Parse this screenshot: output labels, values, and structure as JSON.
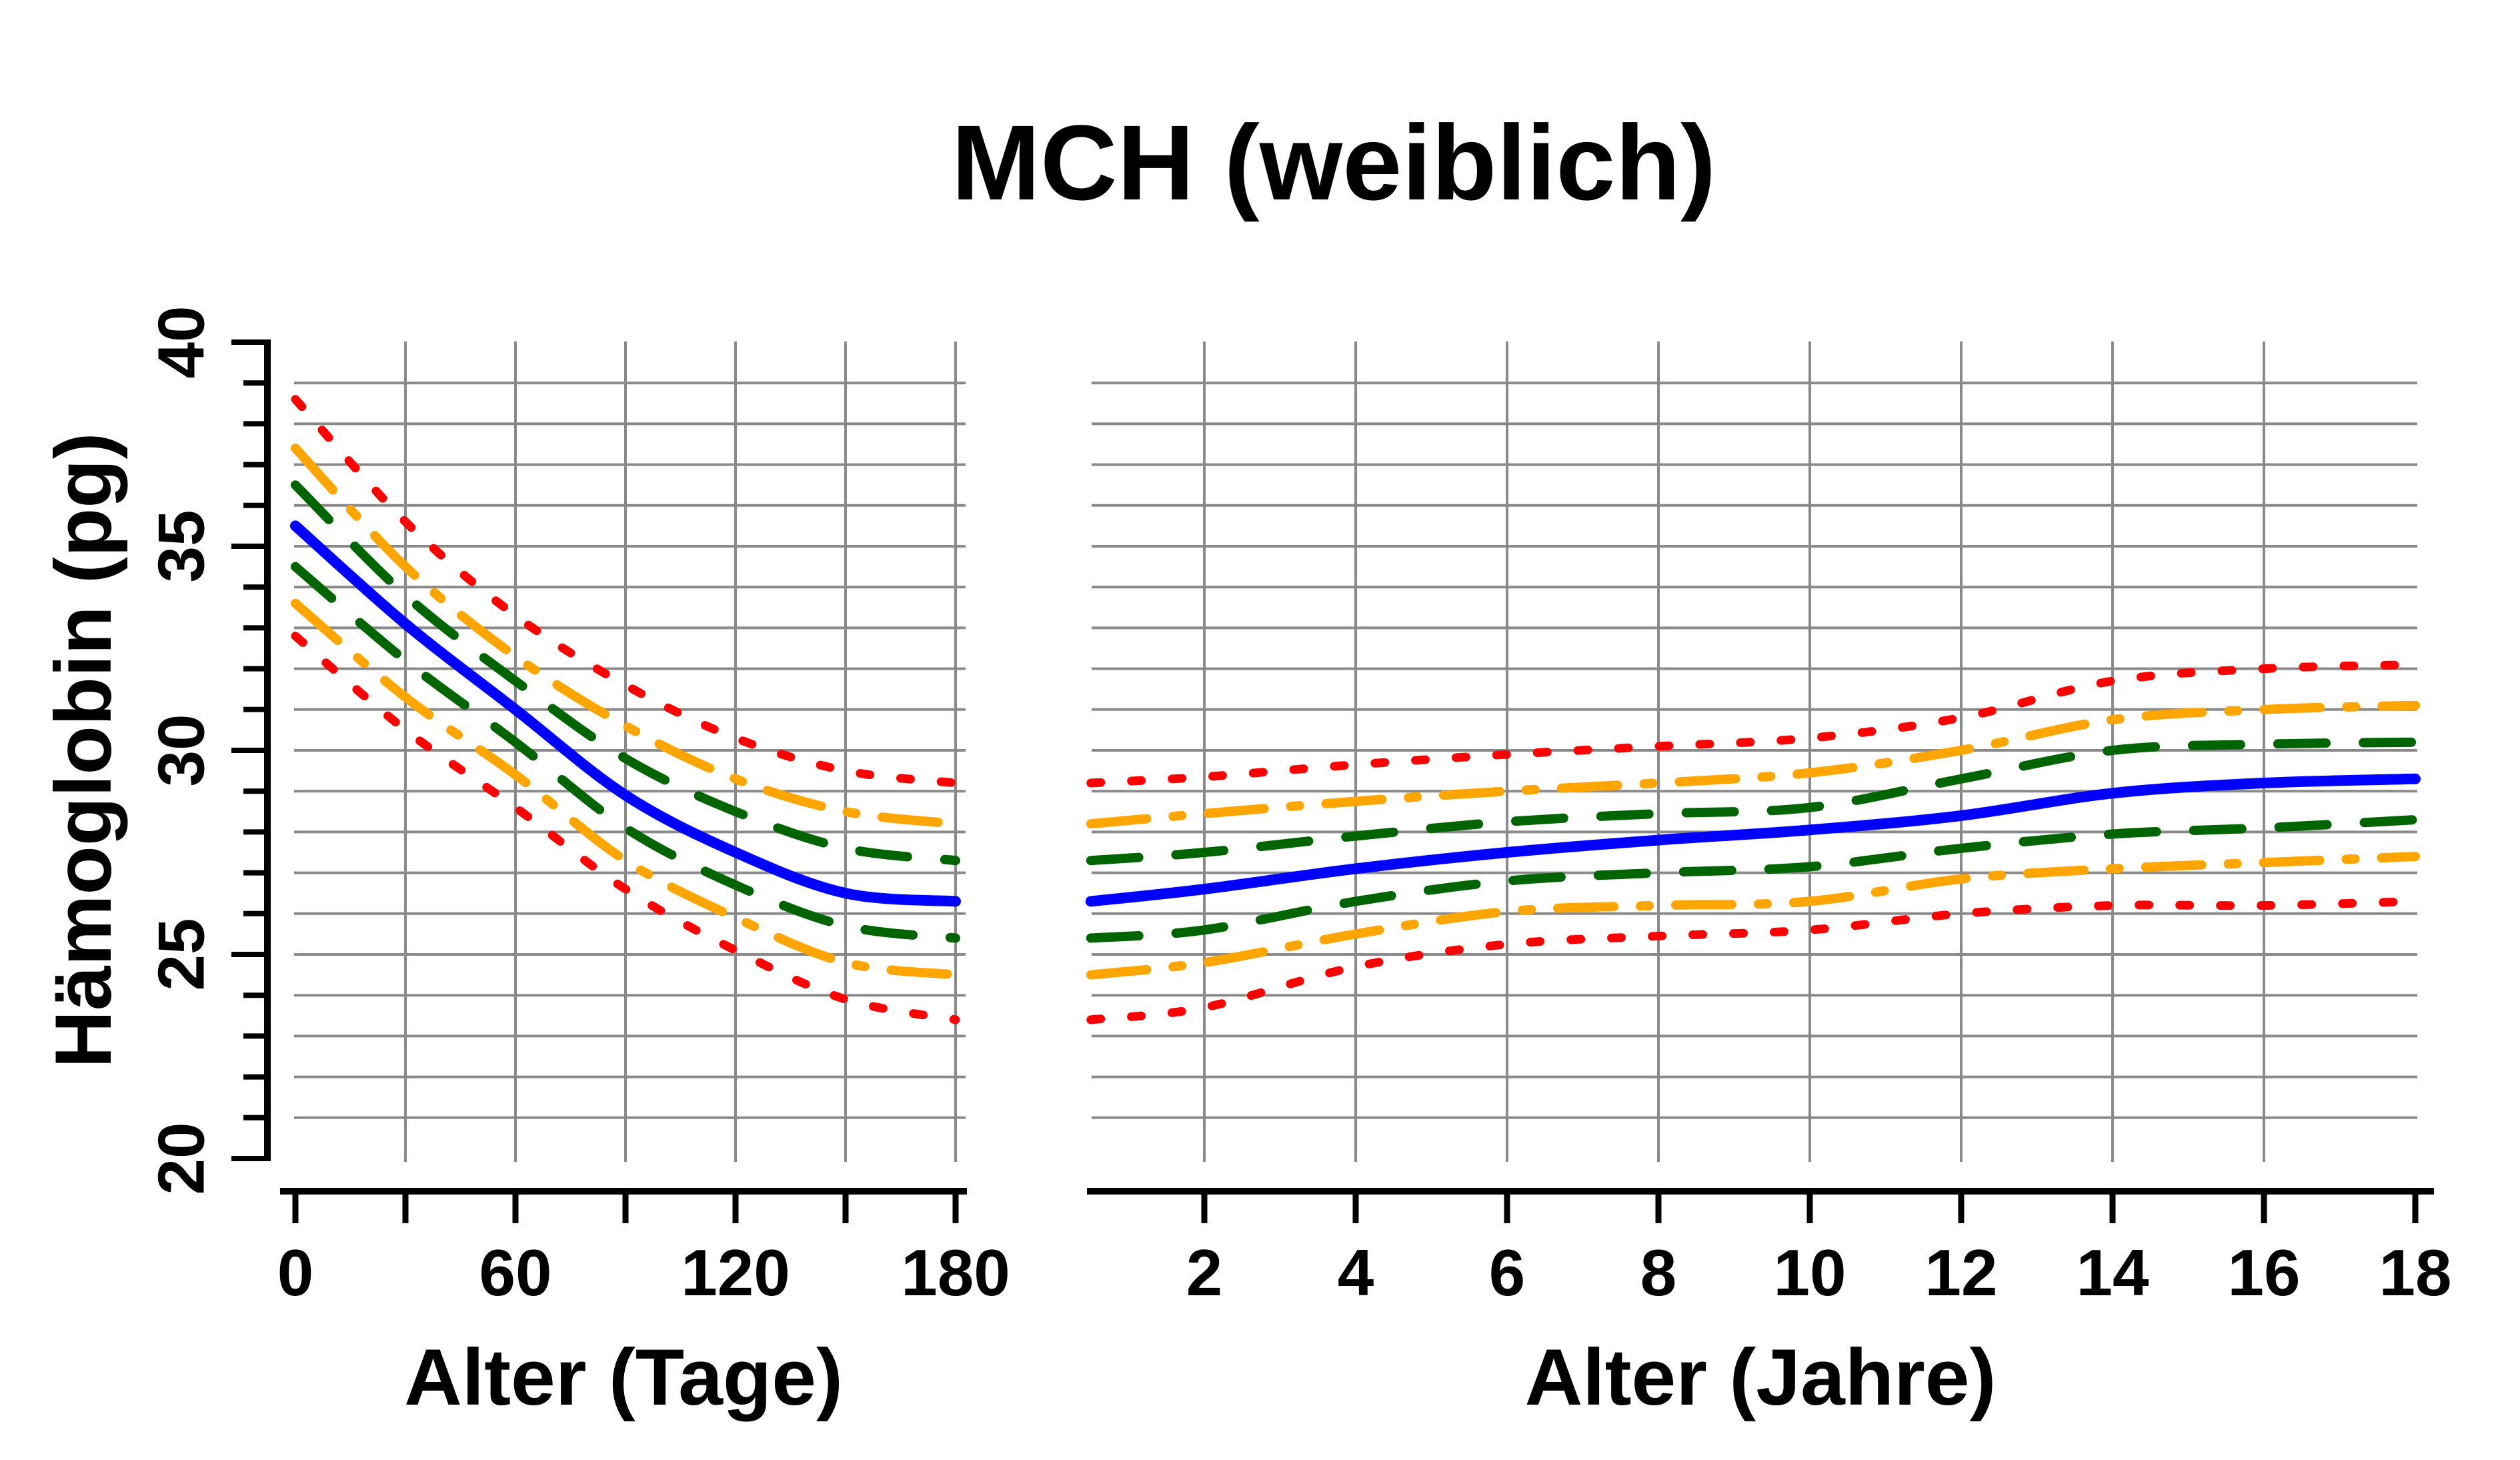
{
  "title": "MCH (weiblich)",
  "ylabel": "Hämoglobin (pg)",
  "colors": {
    "outer_band": "#ff0000",
    "mid_band": "#ffa500",
    "inner_band": "#006400",
    "median": "#0000ff",
    "grid": "#8a8a8a",
    "axis": "#000000"
  },
  "chart_data": [
    {
      "type": "line",
      "panel": "left",
      "title": "MCH (weiblich)",
      "xlabel": "Alter (Tage)",
      "ylabel": "Hämoglobin (pg)",
      "xlim": [
        0,
        182
      ],
      "ylim": [
        19.8,
        40.2
      ],
      "grid": true,
      "legend": "none",
      "x_ticks": [
        0,
        30,
        60,
        90,
        120,
        150,
        180
      ],
      "x_tick_labels": [
        "0",
        "",
        "60",
        "",
        "120",
        "",
        "180"
      ],
      "x_gridlines": [
        30,
        60,
        90,
        120,
        150,
        180
      ],
      "y_ticks_major": [
        20,
        25,
        30,
        35,
        40
      ],
      "y_tick_minor_step": 1,
      "y_gridlines": [
        21,
        22,
        23,
        24,
        25,
        26,
        27,
        28,
        29,
        30,
        31,
        32,
        33,
        34,
        35,
        36,
        37,
        38,
        39
      ],
      "x": [
        0,
        30,
        60,
        90,
        120,
        150,
        180
      ],
      "series": [
        {
          "name": "obere Grenze (rot gepunktet)",
          "color": "#ff0000",
          "style": "dotted",
          "values": [
            38.6,
            35.6,
            33.3,
            31.6,
            30.3,
            29.5,
            29.2
          ]
        },
        {
          "name": "obere Kurve (orange strichpunkt)",
          "color": "#ffa500",
          "style": "dashdot",
          "values": [
            37.4,
            34.5,
            32.3,
            30.6,
            29.3,
            28.5,
            28.2
          ]
        },
        {
          "name": "obere Kurve (grün gestrichelt)",
          "color": "#006400",
          "style": "dashed",
          "values": [
            36.5,
            33.8,
            31.7,
            29.8,
            28.5,
            27.6,
            27.3
          ]
        },
        {
          "name": "Median (blau)",
          "color": "#0000ff",
          "style": "solid",
          "values": [
            35.5,
            33.1,
            31.0,
            28.9,
            27.5,
            26.5,
            26.3
          ]
        },
        {
          "name": "untere Kurve (grün gestrichelt)",
          "color": "#006400",
          "style": "dashed",
          "values": [
            34.5,
            32.2,
            30.2,
            28.1,
            26.7,
            25.7,
            25.4
          ]
        },
        {
          "name": "untere Kurve (orange strichpunkt)",
          "color": "#ffa500",
          "style": "dashdot",
          "values": [
            33.6,
            31.3,
            29.4,
            27.3,
            25.9,
            24.8,
            24.5
          ]
        },
        {
          "name": "untere Grenze (rot gepunktet)",
          "color": "#ff0000",
          "style": "dotted",
          "values": [
            32.8,
            30.5,
            28.6,
            26.6,
            25.1,
            23.9,
            23.4
          ]
        }
      ]
    },
    {
      "type": "line",
      "panel": "right",
      "title": "MCH (weiblich)",
      "xlabel": "Alter (Jahre)",
      "ylabel": "Hämoglobin (pg)",
      "xlim": [
        0.45,
        18.1
      ],
      "ylim": [
        19.8,
        40.2
      ],
      "grid": true,
      "legend": "none",
      "x_ticks": [
        2,
        4,
        6,
        8,
        10,
        12,
        14,
        16,
        18
      ],
      "x_tick_labels": [
        "2",
        "4",
        "6",
        "8",
        "10",
        "12",
        "14",
        "16",
        "18"
      ],
      "x_gridlines": [
        2,
        4,
        6,
        8,
        10,
        12,
        14,
        16
      ],
      "y_ticks_major": [
        20,
        25,
        30,
        35,
        40
      ],
      "y_tick_minor_step": 1,
      "y_gridlines": [
        21,
        22,
        23,
        24,
        25,
        26,
        27,
        28,
        29,
        30,
        31,
        32,
        33,
        34,
        35,
        36,
        37,
        38,
        39
      ],
      "x": [
        0.5,
        2,
        4,
        6,
        8,
        10,
        12,
        14,
        16,
        18
      ],
      "series": [
        {
          "name": "obere Grenze (rot gepunktet)",
          "color": "#ff0000",
          "style": "dotted",
          "values": [
            29.2,
            29.35,
            29.65,
            29.9,
            30.1,
            30.3,
            30.8,
            31.7,
            32.0,
            32.1
          ]
        },
        {
          "name": "obere Kurve (orange strichpunkt)",
          "color": "#ffa500",
          "style": "dashdot",
          "values": [
            28.2,
            28.45,
            28.75,
            29.0,
            29.2,
            29.45,
            30.0,
            30.75,
            31.0,
            31.1
          ]
        },
        {
          "name": "obere Kurve (grün gestrichelt)",
          "color": "#006400",
          "style": "dashed",
          "values": [
            27.3,
            27.5,
            27.9,
            28.25,
            28.45,
            28.6,
            29.3,
            30.0,
            30.15,
            30.2
          ]
        },
        {
          "name": "Median (blau)",
          "color": "#0000ff",
          "style": "solid",
          "values": [
            26.3,
            26.6,
            27.1,
            27.5,
            27.8,
            28.05,
            28.4,
            28.95,
            29.2,
            29.3
          ]
        },
        {
          "name": "untere Kurve (grün gestrichelt)",
          "color": "#006400",
          "style": "dashed",
          "values": [
            25.4,
            25.6,
            26.3,
            26.8,
            27.0,
            27.15,
            27.6,
            27.95,
            28.1,
            28.3
          ]
        },
        {
          "name": "untere Kurve (orange strichpunkt)",
          "color": "#ffa500",
          "style": "dashdot",
          "values": [
            24.5,
            24.8,
            25.5,
            26.05,
            26.2,
            26.3,
            26.85,
            27.1,
            27.25,
            27.4
          ]
        },
        {
          "name": "untere Grenze (rot gepunktet)",
          "color": "#ff0000",
          "style": "dotted",
          "values": [
            23.4,
            23.7,
            24.7,
            25.25,
            25.45,
            25.6,
            26.0,
            26.2,
            26.2,
            26.3
          ]
        }
      ]
    }
  ]
}
